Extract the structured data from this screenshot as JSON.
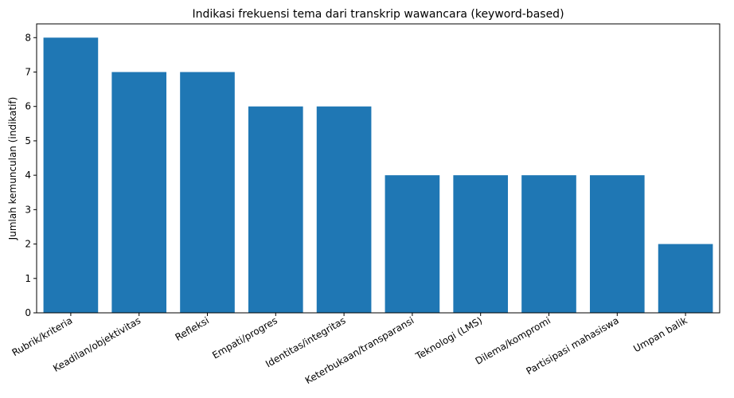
{
  "chart_data": {
    "type": "bar",
    "title": "Indikasi frekuensi tema dari transkrip wawancara (keyword-based)",
    "xlabel": "",
    "ylabel": "Jumlah kemunculan (indikatif)",
    "categories": [
      "Rubrik/kriteria",
      "Keadilan/objektivitas",
      "Refleksi",
      "Empati/progres",
      "Identitas/integritas",
      "Keterbukaan/transparansi",
      "Teknologi (LMS)",
      "Dilema/kompromi",
      "Partisipasi mahasiswa",
      "Umpan balik"
    ],
    "values": [
      8,
      7,
      7,
      6,
      6,
      4,
      4,
      4,
      4,
      2
    ],
    "ylim": [
      0,
      8.4
    ],
    "yticks": [
      0,
      1,
      2,
      3,
      4,
      5,
      6,
      7,
      8
    ],
    "bar_color": "#1f77b4",
    "grid": false,
    "legend": "none"
  }
}
